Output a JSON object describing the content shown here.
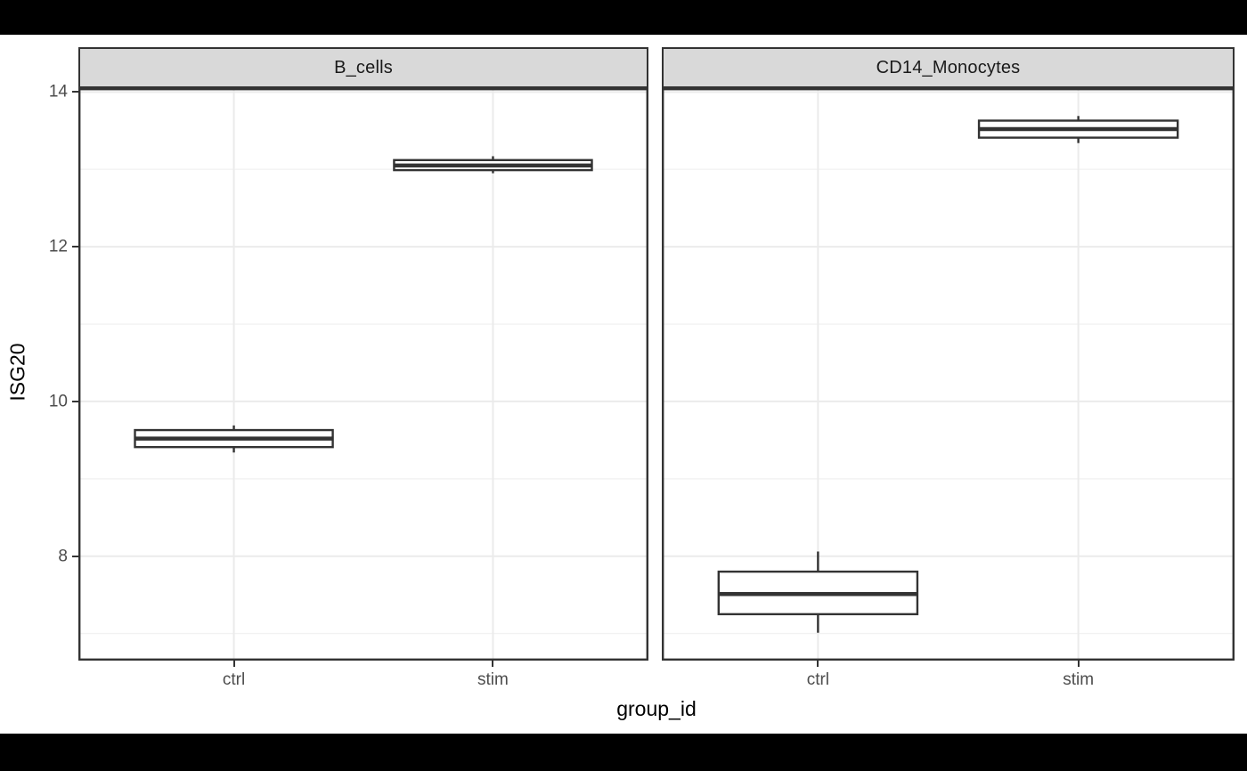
{
  "window": {
    "background": "#ffffff",
    "letterbox_color": "#000000"
  },
  "chart_data": {
    "type": "boxplot",
    "title": "",
    "xlabel": "group_id",
    "ylabel": "ISG20",
    "categories": [
      "ctrl",
      "stim"
    ],
    "y_ticks_major": [
      8,
      10,
      12,
      14
    ],
    "y_ticks_minor": [
      7,
      9,
      11,
      13
    ],
    "ylim": [
      6.65,
      14.05
    ],
    "grid": "major and minor horizontal lines, major vertical at categories",
    "legend_position": "none",
    "facets": [
      {
        "label": "B_cells",
        "boxes": [
          {
            "category": "ctrl",
            "whisker_low": 9.34,
            "q1": 9.41,
            "median": 9.52,
            "q3": 9.63,
            "whisker_high": 9.69
          },
          {
            "category": "stim",
            "whisker_low": 12.95,
            "q1": 12.99,
            "median": 13.05,
            "q3": 13.12,
            "whisker_high": 13.17
          }
        ]
      },
      {
        "label": "CD14_Monocytes",
        "boxes": [
          {
            "category": "ctrl",
            "whisker_low": 7.01,
            "q1": 7.25,
            "median": 7.51,
            "q3": 7.8,
            "whisker_high": 8.06
          },
          {
            "category": "stim",
            "whisker_low": 13.34,
            "q1": 13.41,
            "median": 13.52,
            "q3": 13.63,
            "whisker_high": 13.69
          }
        ]
      }
    ],
    "colors": {
      "box_stroke": "#333333",
      "box_fill": "#ffffff",
      "panel_border": "#333333",
      "grid_major": "#ebebeb",
      "grid_minor": "#f2f2f2",
      "strip_fill": "#d9d9d9",
      "strip_border": "#333333",
      "strip_text": "#1a1a1a",
      "tick_text": "#4d4d4d",
      "axis_title_text": "#000000"
    }
  }
}
